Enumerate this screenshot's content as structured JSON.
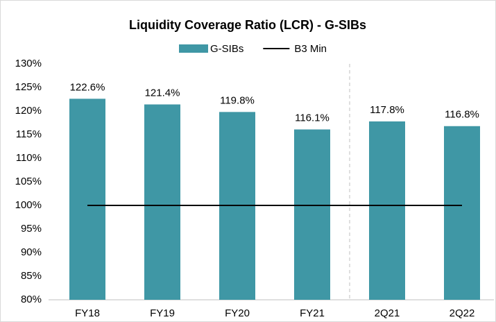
{
  "chart_data": {
    "type": "bar",
    "title": "Liquidity Coverage Ratio (LCR) - G-SIBs",
    "categories": [
      "FY18",
      "FY19",
      "FY20",
      "FY21",
      "2Q21",
      "2Q22"
    ],
    "series": [
      {
        "name": "G-SIBs",
        "type": "bar",
        "color": "#3f97a5",
        "values": [
          122.6,
          121.4,
          119.8,
          116.1,
          117.8,
          116.8
        ],
        "value_labels": [
          "122.6%",
          "121.4%",
          "119.8%",
          "116.1%",
          "117.8%",
          "116.8%"
        ]
      },
      {
        "name": "B3 Min",
        "type": "line",
        "color": "#000000",
        "values": [
          100,
          100,
          100,
          100,
          100,
          100
        ]
      }
    ],
    "ylim": [
      80,
      130
    ],
    "yticks": [
      {
        "value": 80,
        "label": "80%"
      },
      {
        "value": 85,
        "label": "85%"
      },
      {
        "value": 90,
        "label": "90%"
      },
      {
        "value": 95,
        "label": "95%"
      },
      {
        "value": 100,
        "label": "100%"
      },
      {
        "value": 105,
        "label": "105%"
      },
      {
        "value": 110,
        "label": "110%"
      },
      {
        "value": 115,
        "label": "115%"
      },
      {
        "value": 120,
        "label": "120%"
      },
      {
        "value": 125,
        "label": "125%"
      },
      {
        "value": 130,
        "label": "130%"
      }
    ],
    "grid": false,
    "legend": "top"
  }
}
